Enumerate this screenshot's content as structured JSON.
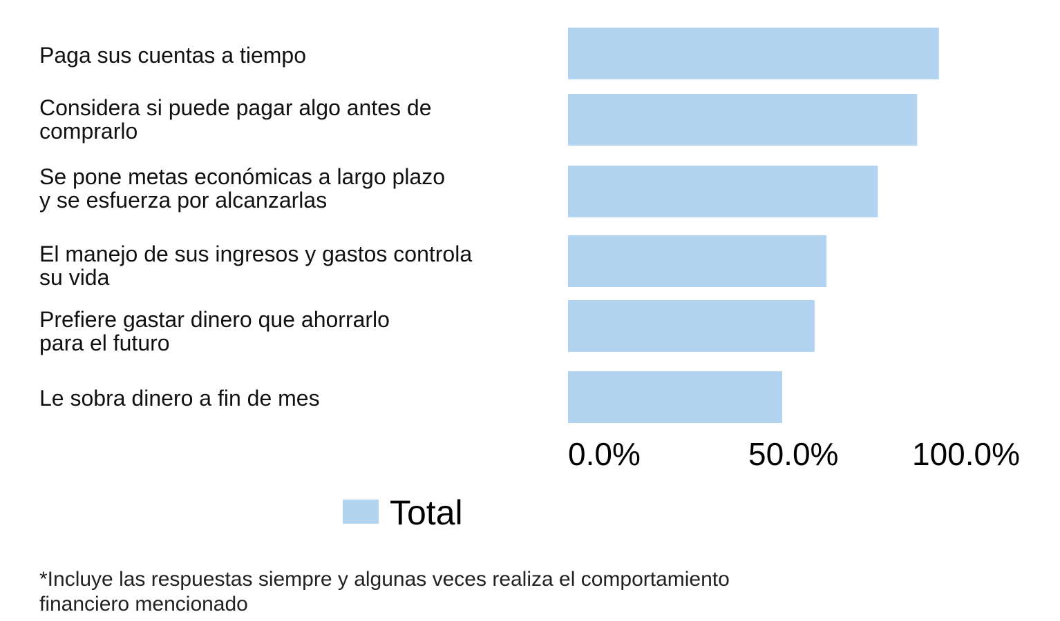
{
  "chart_data": {
    "type": "bar",
    "orientation": "horizontal",
    "categories": [
      [
        "Paga sus cuentas a tiempo"
      ],
      [
        "Considera si puede pagar algo antes de",
        "comprarlo"
      ],
      [
        "Se pone metas económicas a largo plazo",
        "y se esfuerza por alcanzarlas"
      ],
      [
        "El manejo de sus ingresos y gastos controla",
        "su vida"
      ],
      [
        "Prefiere gastar dinero que ahorrarlo",
        "para el futuro"
      ],
      [
        "Le sobra dinero a fin de mes"
      ]
    ],
    "series": [
      {
        "name": "Total",
        "color": "#b3d4f1",
        "values": [
          0.94,
          0.885,
          0.785,
          0.655,
          0.625,
          0.543
        ]
      }
    ],
    "xlim": [
      0,
      1
    ],
    "xticks": [
      "0.0%",
      "50.0%",
      "100.0%"
    ],
    "legend_position": "bottom",
    "grid": false
  },
  "footnote": [
    "*Incluye las respuestas siempre y algunas veces realiza el comportamiento",
    "financiero mencionado"
  ]
}
